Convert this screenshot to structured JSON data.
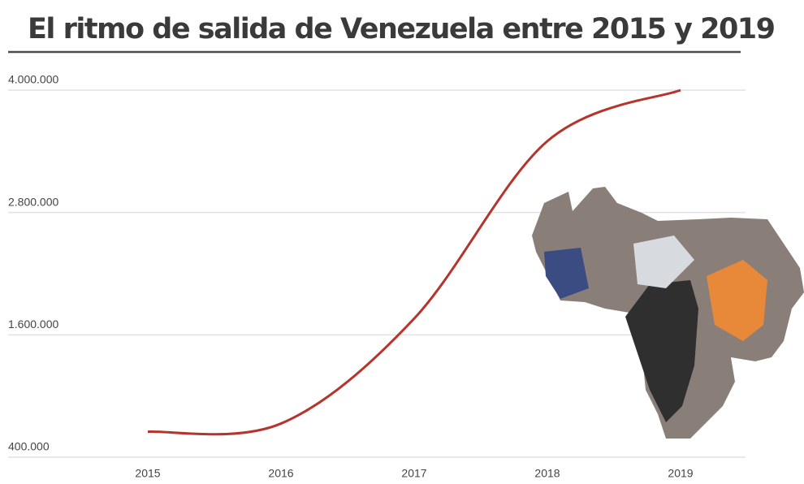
{
  "chart_data": {
    "type": "line",
    "title": "El ritmo de salida de Venezuela entre 2015 y 2019",
    "categories": [
      "2015",
      "2016",
      "2017",
      "2018",
      "2019"
    ],
    "values": [
      650000,
      730000,
      1760000,
      3500000,
      4000000
    ],
    "color": "#b5342b",
    "ylim": [
      400000,
      4000000
    ],
    "yticks": [
      {
        "value": 400000,
        "label": "400.000"
      },
      {
        "value": 1600000,
        "label": "1.600.000"
      },
      {
        "value": 2800000,
        "label": "2.800.000"
      },
      {
        "value": 4000000,
        "label": "4.000.000"
      }
    ],
    "grid": true
  }
}
